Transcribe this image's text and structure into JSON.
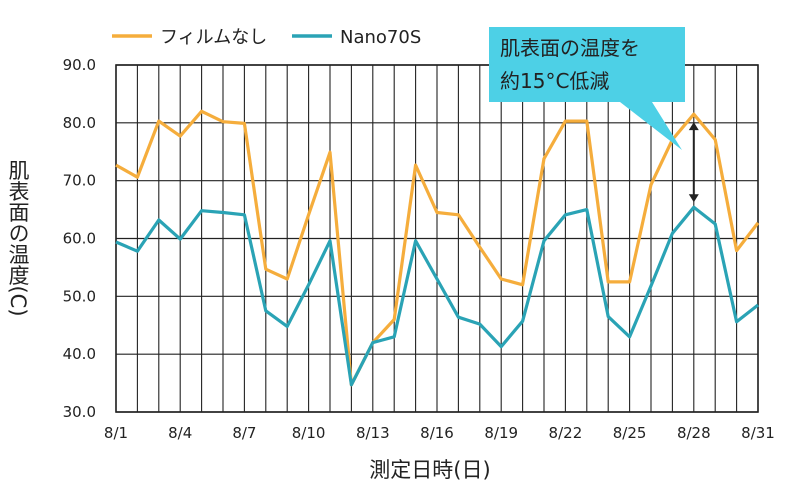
{
  "chart_data": {
    "type": "line",
    "title": "",
    "xlabel": "測定日時(日)",
    "ylabel": "肌表面の温度(C)",
    "ylim": [
      30,
      90
    ],
    "y_ticks": [
      "30.0",
      "40.0",
      "50.0",
      "60.0",
      "70.0",
      "80.0",
      "90.0"
    ],
    "x_ticks": [
      "8/1",
      "8/4",
      "8/7",
      "8/10",
      "8/13",
      "8/16",
      "8/19",
      "8/22",
      "8/25",
      "8/28",
      "8/31"
    ],
    "x": [
      "8/1",
      "8/2",
      "8/3",
      "8/4",
      "8/5",
      "8/6",
      "8/7",
      "8/8",
      "8/9",
      "8/10",
      "8/11",
      "8/12",
      "8/13",
      "8/14",
      "8/15",
      "8/16",
      "8/17",
      "8/18",
      "8/19",
      "8/20",
      "8/21",
      "8/22",
      "8/23",
      "8/24",
      "8/25",
      "8/26",
      "8/27",
      "8/28",
      "8/29",
      "8/30",
      "8/31"
    ],
    "grid": true,
    "legend": "top-left",
    "series": [
      {
        "name": "フィルムなし",
        "color": "#f5ad3c",
        "values": [
          72.7,
          70.6,
          80.3,
          77.7,
          82.0,
          80.2,
          79.9,
          54.7,
          53.0,
          64.1,
          74.9,
          34.7,
          42.0,
          46.0,
          72.7,
          64.5,
          64.1,
          58.5,
          53.0,
          52.0,
          73.8,
          80.3,
          80.3,
          52.5,
          52.5,
          69.3,
          77.1,
          81.5,
          77.1,
          57.9,
          62.7
        ]
      },
      {
        "name": "Nano70S",
        "color": "#2aa3b5",
        "values": [
          59.4,
          57.8,
          63.2,
          59.9,
          64.8,
          64.5,
          64.1,
          47.5,
          44.8,
          52.0,
          59.6,
          34.7,
          42.0,
          43.0,
          59.6,
          53.0,
          46.4,
          45.2,
          41.3,
          45.7,
          59.6,
          64.1,
          65.0,
          46.5,
          43.0,
          51.8,
          60.9,
          65.4,
          62.5,
          45.6,
          48.5
        ]
      }
    ],
    "annotation": {
      "text_line1": "肌表面の温度を",
      "text_line2": "約15°C低減",
      "from_value": 81.5,
      "to_value": 65.4,
      "at_x": "8/28",
      "color": "#4dd0e6"
    }
  }
}
